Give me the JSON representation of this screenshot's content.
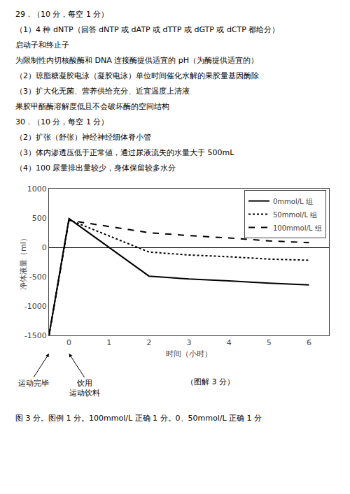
{
  "chart_data": {
    "type": "line",
    "text_lines": [
      "29．（10 分，每空 1 分）",
      "（1）4 种 dNTP（回答 dNTP 或 dATP 或 dTTP 或 dGTP 或 dCTP 都给分）",
      "启动子和终止子",
      "为限制性内切核酸酶和 DNA 连接酶提供适宜的 pH（为酶提供适宜的）",
      "（2）琼脂糖凝胶电泳（凝胶电泳）单位时间催化水解的果胶量基因酶除",
      "（3）扩大化无菌、营养供给充分、近宜温度上清液",
      "果胶甲酯酶溶解度低且不会破坏酶的空间结构",
      "30．（10 分，每空 1 分）",
      "（2）扩张（舒张）神经神经细体脊小管",
      "（3）体内渗透压低于正常値，通过尿液流失的水量大于 500mL",
      "（4）100 尿量排出量较少，身体保留较多水分"
    ],
    "xlabel": "时间（小时）",
    "ylabel": "净体液量（ml）",
    "x": [
      -0.5,
      0,
      2,
      3,
      4,
      5,
      6
    ],
    "series": [
      {
        "name": "0mmol/L 组",
        "color": "#000000",
        "line_style": "solid",
        "values": [
          -1500,
          490,
          -490,
          -540,
          -570,
          -610,
          -640
        ]
      },
      {
        "name": "50mmol/L 组",
        "color": "#000000",
        "line_style": "dotted",
        "values": [
          -1500,
          470,
          -80,
          -130,
          -160,
          -200,
          -220
        ]
      },
      {
        "name": "100mmol/L 组",
        "color": "#000000",
        "line_style": "dashed",
        "values": [
          -1500,
          460,
          250,
          200,
          160,
          110,
          80
        ]
      }
    ],
    "xlim": [
      -0.5,
      6.5
    ],
    "ylim": [
      -1500,
      1000
    ],
    "xticks": [
      0,
      1,
      2,
      3,
      4,
      5,
      6
    ],
    "yticks": [
      -1500,
      -1000,
      -500,
      0,
      500,
      1000
    ],
    "grid": false,
    "legend": "upper right",
    "annotations": [
      {
        "text": "运动完毕",
        "x": -0.5
      },
      {
        "text": "饮用\n运动饮料",
        "x": 0
      }
    ],
    "caption": "（图解 3 分）",
    "note": "图 3 分。图例 1 分。100mmol/L 正确 1 分。0、50mmol/L 正确 1 分"
  }
}
